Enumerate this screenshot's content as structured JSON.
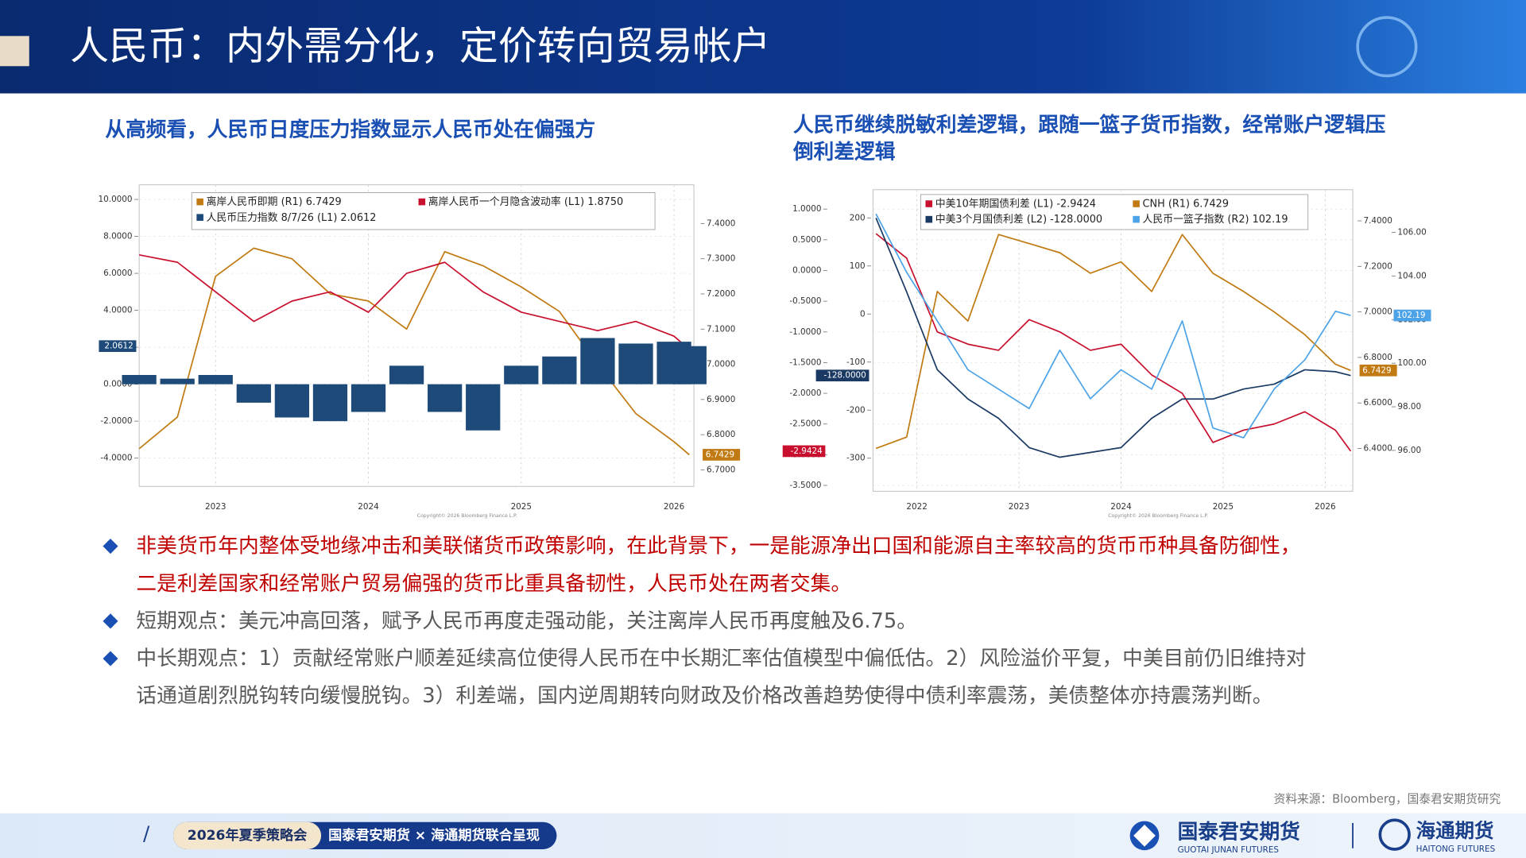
{
  "header": {
    "title": "人民币：内外需分化，定价转向贸易帐户"
  },
  "chart_data": [
    {
      "type": "line",
      "title": [
        "从高频看，人民币日度压力指数显示人民币处在偏强方"
      ],
      "x": [
        2022.5,
        2022.75,
        2023.0,
        2023.25,
        2023.5,
        2023.75,
        2024.0,
        2024.25,
        2024.5,
        2024.75,
        2025.0,
        2025.25,
        2025.5,
        2025.75,
        2026.0,
        2026.1
      ],
      "xlim": [
        2022.5,
        2026.13
      ],
      "xticks": [
        2023,
        2024,
        2025,
        2026
      ],
      "ylim": [
        -5.53,
        10.79
      ],
      "yticks": [
        {
          "value": -4,
          "label": "-4.0000"
        },
        {
          "value": -2,
          "label": "-2.0000"
        },
        {
          "value": 0,
          "label": "0.0000"
        },
        {
          "value": 2,
          "label": "2.0000"
        },
        {
          "value": 4,
          "label": "4.0000"
        },
        {
          "value": 6,
          "label": "6.0000"
        },
        {
          "value": 8,
          "label": "8.0000"
        },
        {
          "value": 10,
          "label": "10.0000"
        }
      ],
      "y2lim": [
        6.653,
        7.51
      ],
      "y2ticks": [
        {
          "value": 6.7,
          "label": "6.7000"
        },
        {
          "value": 6.8,
          "label": "6.8000"
        },
        {
          "value": 6.9,
          "label": "6.9000"
        },
        {
          "value": 7.0,
          "label": "7.0000"
        },
        {
          "value": 7.1,
          "label": "7.1000"
        },
        {
          "value": 7.2,
          "label": "7.2000"
        },
        {
          "value": 7.3,
          "label": "7.3000"
        },
        {
          "value": 7.4,
          "label": "7.4000"
        }
      ],
      "grid": true,
      "legend": "upper-left",
      "series": [
        {
          "name": "离岸人民币即期 (R1) 6.7429",
          "color": "#c17a12",
          "axis": "y2",
          "last_label": "6.7429",
          "values": [
            6.76,
            6.85,
            7.25,
            7.33,
            7.3,
            7.2,
            7.18,
            7.1,
            7.32,
            7.28,
            7.22,
            7.15,
            7.0,
            6.86,
            6.78,
            6.7429
          ]
        },
        {
          "name": "离岸人民币一个月隐含波动率 (L1) 1.8750",
          "color": "#c8102e",
          "axis": "y",
          "values": [
            7.0,
            6.6,
            5.0,
            3.4,
            4.5,
            5.0,
            3.9,
            6.0,
            6.6,
            5.0,
            3.9,
            3.4,
            2.9,
            3.4,
            2.6,
            1.875
          ]
        },
        {
          "name": "人民币压力指数 8/7/26 (L1) 2.0612",
          "color": "#1e4a7a",
          "axis": "y",
          "kind": "bar",
          "last_label": "2.0612",
          "values": [
            0.5,
            0.3,
            0.5,
            -1.0,
            -1.8,
            -2.0,
            -1.5,
            1.0,
            -1.5,
            -2.5,
            1.0,
            1.5,
            2.5,
            2.2,
            2.3,
            2.0612
          ]
        }
      ],
      "source": "Copyright© 2026 Bloomberg Finance L.P."
    },
    {
      "type": "line",
      "title": [
        "人民币继续脱敏利差逻辑，跟随一篮子货币指数，经常账户逻辑压",
        "倒利差逻辑"
      ],
      "x": [
        2021.6,
        2021.9,
        2022.2,
        2022.5,
        2022.8,
        2023.1,
        2023.4,
        2023.7,
        2024.0,
        2024.3,
        2024.6,
        2024.9,
        2025.2,
        2025.5,
        2025.8,
        2026.1,
        2026.25
      ],
      "xlim": [
        2021.57,
        2026.27
      ],
      "xticks": [
        2022,
        2023,
        2024,
        2025,
        2026
      ],
      "ylim": [
        -3.595,
        1.316
      ],
      "yticks": [
        {
          "value": -3.5,
          "label": "-3.5000"
        },
        {
          "value": -3,
          "label": "-3.0000"
        },
        {
          "value": -2.5,
          "label": "-2.5000"
        },
        {
          "value": -2,
          "label": "-2.0000"
        },
        {
          "value": -1.5,
          "label": "-1.5000"
        },
        {
          "value": -1,
          "label": "-1.0000"
        },
        {
          "value": -0.5,
          "label": "-0.5000"
        },
        {
          "value": 0,
          "label": "0.0000"
        },
        {
          "value": 0.5,
          "label": "0.5000"
        },
        {
          "value": 1,
          "label": "1.0000"
        }
      ],
      "y3lim": [
        -368.8,
        258.7
      ],
      "y3ticks": [
        -300,
        -200,
        -100,
        0,
        100,
        200
      ],
      "y2lim": [
        6.212,
        7.537
      ],
      "y2ticks": [
        {
          "value": 6.4,
          "label": "6.4000"
        },
        {
          "value": 6.6,
          "label": "6.6000"
        },
        {
          "value": 6.8,
          "label": "6.8000"
        },
        {
          "value": 7.0,
          "label": "7.0000"
        },
        {
          "value": 7.2,
          "label": "7.2000"
        },
        {
          "value": 7.4,
          "label": "7.4000"
        }
      ],
      "y4lim": [
        94.125,
        107.96
      ],
      "y4ticks": [
        {
          "value": 96,
          "label": "96.00"
        },
        {
          "value": 98,
          "label": "98.00"
        },
        {
          "value": 100,
          "label": "100.00"
        },
        {
          "value": 102,
          "label": "102.00"
        },
        {
          "value": 104,
          "label": "104.00"
        },
        {
          "value": 106,
          "label": "106.00"
        }
      ],
      "grid": true,
      "legend": "upper-left",
      "series": [
        {
          "name": "中美10年期国债利差 (L1) -2.9424",
          "color": "#c8102e",
          "axis": "y",
          "last_label": "-2.9424",
          "values": [
            0.6,
            0.2,
            -1.0,
            -1.2,
            -1.3,
            -0.8,
            -1.0,
            -1.3,
            -1.2,
            -1.7,
            -2.0,
            -2.8,
            -2.6,
            -2.5,
            -2.3,
            -2.6,
            -2.9424
          ]
        },
        {
          "name": "CNH (R1) 6.7429",
          "color": "#c17a12",
          "axis": "y2",
          "last_label": "6.7429",
          "values": [
            6.4,
            6.45,
            7.09,
            6.96,
            7.34,
            7.3,
            7.26,
            7.17,
            7.22,
            7.09,
            7.34,
            7.17,
            7.09,
            7.0,
            6.9,
            6.77,
            6.7429
          ]
        },
        {
          "name": "中美3个月国债利差 (L2) -128.0000",
          "color": "#1b3a63",
          "axis": "y3",
          "last_label": "-128.0000",
          "values": [
            200,
            46,
            -116,
            -177,
            -217,
            -278,
            -298,
            -288,
            -278,
            -217,
            -177,
            -177,
            -156,
            -146,
            -116,
            -120,
            -128
          ]
        },
        {
          "name": "人民币一篮子指数 (R2) 102.19",
          "color": "#4da3e8",
          "axis": "y4",
          "last_label": "102.19",
          "values": [
            106.85,
            104.17,
            101.94,
            99.7,
            98.81,
            97.92,
            100.6,
            98.37,
            99.7,
            98.81,
            101.94,
            97.03,
            96.58,
            98.81,
            100.15,
            102.38,
            102.19
          ]
        }
      ],
      "source": "Copyright© 2026 Bloomberg Finance L.P."
    }
  ],
  "bullets": [
    {
      "color": "#c00000",
      "lines": [
        "非美货币年内整体受地缘冲击和美联储货币政策影响，在此背景下，一是能源净出口国和能源自主率较高的货币币种具备防御性，",
        "二是利差国家和经常账户贸易偏强的货币比重具备韧性，人民币处在两者交集。"
      ]
    },
    {
      "color": "#595959",
      "lines": [
        "短期观点：美元冲高回落，赋予人民币再度走强动能，关注离岸人民币再度触及6.75。"
      ]
    },
    {
      "color": "#595959",
      "lines": [
        "中长期观点：1）贡献经常账户顺差延续高位使得人民币在中长期汇率估值模型中偏低估。2）风险溢价平复，中美目前仍旧维持对",
        "话通道剧烈脱钩转向缓慢脱钩。3）利差端，国内逆周期转向财政及价格改善趋势使得中债利率震荡，美债整体亦持震荡判断。"
      ]
    }
  ],
  "source": "资料来源：Bloomberg，国泰君安期货研究",
  "footer": {
    "event": "2026年夏季策略会",
    "partners": "国泰君安期货 × 海通期货联合呈现",
    "logo1": "国泰君安期货",
    "logo1_en": "GUOTAI JUNAN FUTURES",
    "logo2": "海通期货",
    "logo2_en": "HAITONG FUTURES"
  }
}
